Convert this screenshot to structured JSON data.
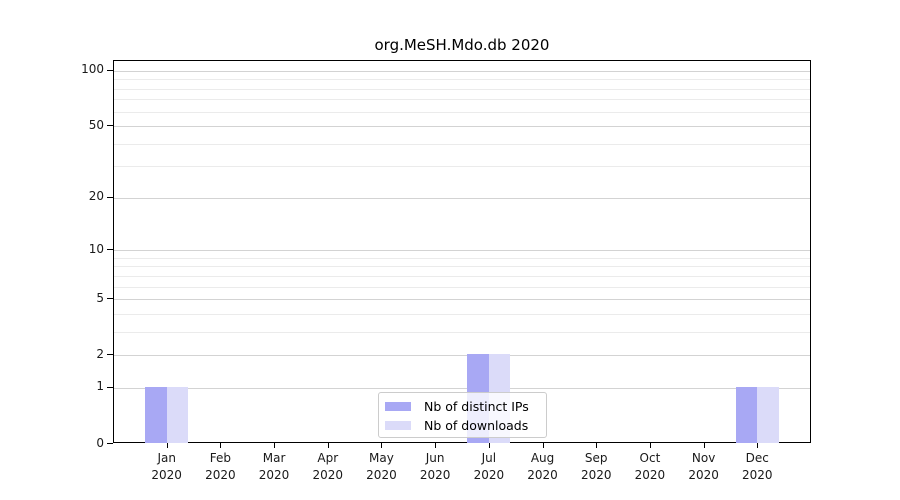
{
  "chart_data": {
    "type": "bar",
    "title": "org.MeSH.Mdo.db 2020",
    "categories": [
      "Jan",
      "Feb",
      "Mar",
      "Apr",
      "May",
      "Jun",
      "Jul",
      "Aug",
      "Sep",
      "Oct",
      "Nov",
      "Dec"
    ],
    "x_sub_label": "2020",
    "series": [
      {
        "name": "Nb of distinct IPs",
        "color": "#a8a8f4",
        "values": [
          1,
          0,
          0,
          0,
          0,
          0,
          2,
          0,
          0,
          0,
          0,
          1
        ]
      },
      {
        "name": "Nb of downloads",
        "color": "#dbdbf9",
        "values": [
          1,
          0,
          0,
          0,
          0,
          0,
          2,
          0,
          0,
          0,
          0,
          1
        ]
      }
    ],
    "yaxis": {
      "scale": "log10(1+v)",
      "major_ticks": [
        0,
        1,
        2,
        5,
        10,
        20,
        50,
        100
      ],
      "minor_gridlines": [
        3,
        4,
        6,
        7,
        8,
        9,
        30,
        40,
        60,
        70,
        80,
        90
      ],
      "ylim": [
        0,
        113
      ]
    },
    "grid": "horizontal",
    "legend_position": "lower center"
  }
}
